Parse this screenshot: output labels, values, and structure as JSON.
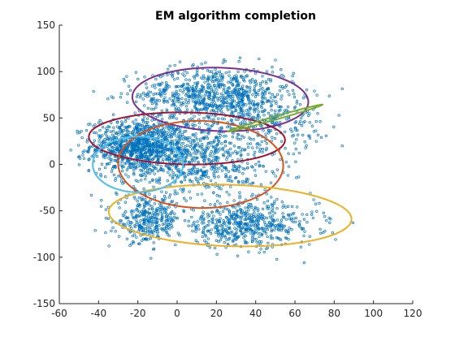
{
  "chart_data": {
    "type": "scatter",
    "title": "EM algorithm completion",
    "xlabel": "",
    "ylabel": "",
    "xlim": [
      -60,
      120
    ],
    "ylim": [
      -150,
      150
    ],
    "x_ticks": [
      -60,
      -40,
      -20,
      0,
      20,
      40,
      60,
      80,
      100,
      120
    ],
    "y_ticks": [
      -150,
      -100,
      -50,
      0,
      50,
      100,
      150
    ],
    "grid": false,
    "point_color": "#0072BD",
    "clusters": [
      {
        "mean": [
          -20,
          20
        ],
        "std": [
          12,
          14
        ],
        "count": 900
      },
      {
        "mean": [
          20,
          75
        ],
        "std": [
          20,
          15
        ],
        "count": 800
      },
      {
        "mean": [
          10,
          5
        ],
        "std": [
          20,
          22
        ],
        "count": 700
      },
      {
        "mean": [
          35,
          -65
        ],
        "std": [
          18,
          12
        ],
        "count": 550
      },
      {
        "mean": [
          -15,
          -60
        ],
        "std": [
          8,
          12
        ],
        "count": 300
      },
      {
        "mean": [
          45,
          45
        ],
        "std": [
          15,
          12
        ],
        "count": 200
      }
    ],
    "ellipses": [
      {
        "color": "#7E2F8E",
        "center": [
          22,
          70
        ],
        "rx": 45,
        "ry": 34,
        "angle_deg": -8
      },
      {
        "color": "#A2142F",
        "center": [
          5,
          28
        ],
        "rx": 50,
        "ry": 28,
        "angle_deg": -3
      },
      {
        "color": "#D95319",
        "center": [
          12,
          0
        ],
        "rx": 42,
        "ry": 47,
        "angle_deg": 6
      },
      {
        "color": "#EDB120",
        "center": [
          27,
          -55
        ],
        "rx": 62,
        "ry": 33,
        "angle_deg": -5
      },
      {
        "color": "#4DBEEE",
        "center": [
          -20,
          0
        ],
        "rx": 23,
        "ry": 30,
        "angle_deg": 0
      },
      {
        "color": "#77AC30",
        "center": [
          50,
          50
        ],
        "rx": 28,
        "ry": 1.6,
        "angle_deg": 31
      }
    ]
  }
}
